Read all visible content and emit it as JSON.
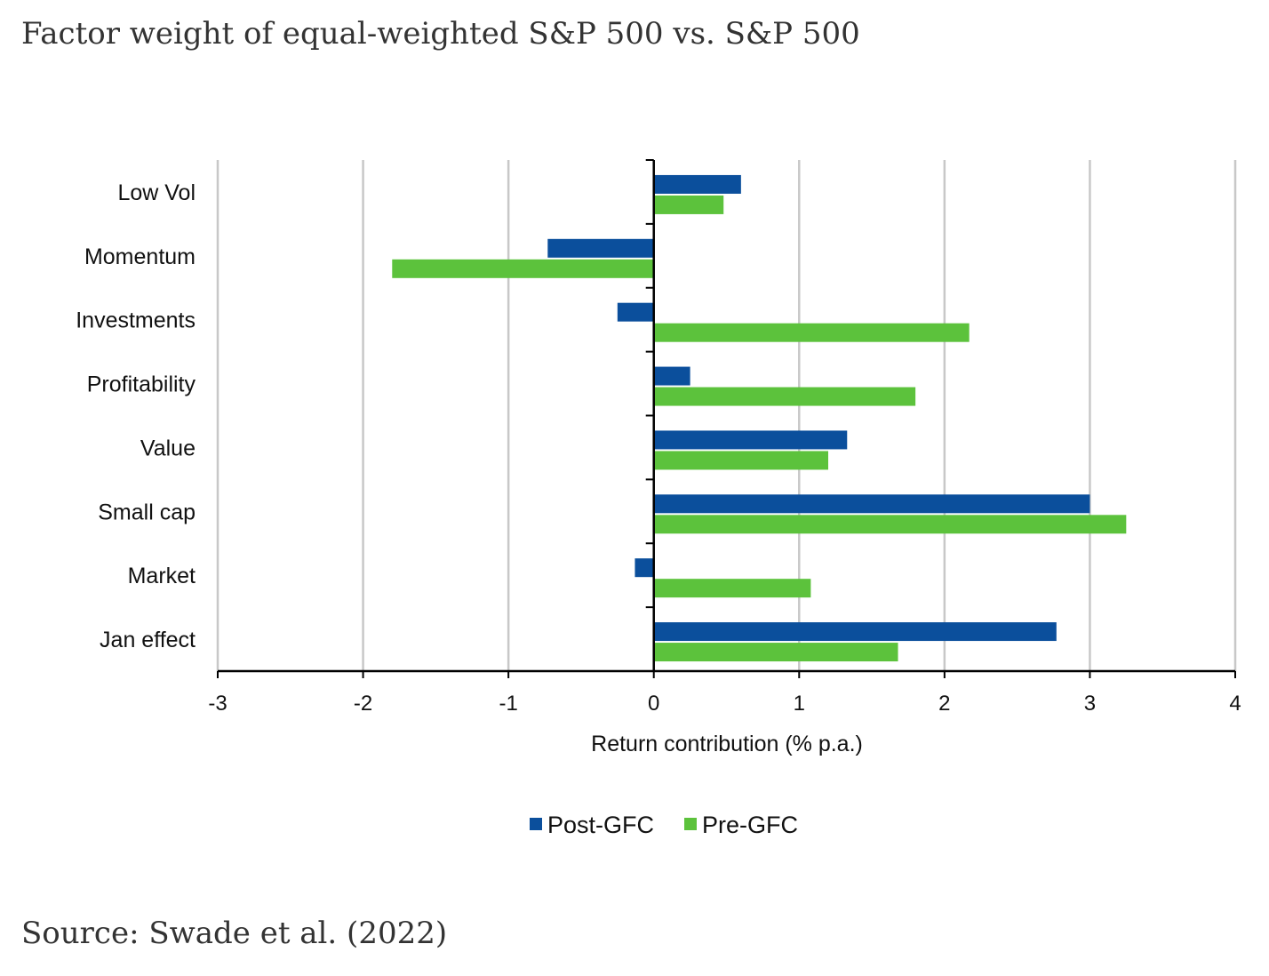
{
  "title": "Factor weight of equal-weighted S&P 500 vs. S&P 500",
  "source": "Source: Swade et al. (2022)",
  "chart_data": {
    "type": "bar",
    "orientation": "horizontal",
    "categories": [
      "Low Vol",
      "Momentum",
      "Investments",
      "Profitability",
      "Value",
      "Small cap",
      "Market",
      "Jan effect"
    ],
    "series": [
      {
        "name": "Post-GFC",
        "color": "#0b4f9c",
        "values": [
          0.6,
          -0.73,
          -0.25,
          0.25,
          1.33,
          3.0,
          -0.13,
          2.77
        ]
      },
      {
        "name": "Pre-GFC",
        "color": "#5cc23c",
        "values": [
          0.48,
          -1.8,
          2.17,
          1.8,
          1.2,
          3.25,
          1.08,
          1.68
        ]
      }
    ],
    "xlabel": "Return contribution (% p.a.)",
    "ylabel": "",
    "xlim": [
      -3,
      4
    ],
    "xticks": [
      "-3",
      "-2",
      "-1",
      "0",
      "1",
      "2",
      "3",
      "4"
    ],
    "grid": "vertical",
    "legend": "bottom-center"
  }
}
